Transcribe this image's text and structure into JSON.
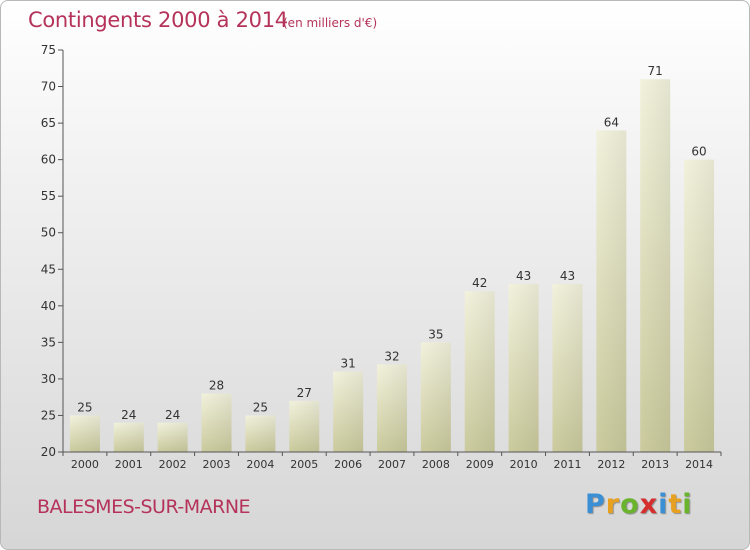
{
  "title": "Contingents 2000 à 2014",
  "subtitle": "(en milliers d'€)",
  "commune": "BALESMES-SUR-MARNE",
  "logo": {
    "letters": [
      "P",
      "r",
      "o",
      "x",
      "i",
      "t",
      "i"
    ],
    "colors": [
      "#3b8fd4",
      "#e8a020",
      "#6ab42d",
      "#d62d2d",
      "#3b8fd4",
      "#e8a020",
      "#6ab42d"
    ]
  },
  "chart_data": {
    "type": "bar",
    "categories": [
      "2000",
      "2001",
      "2002",
      "2003",
      "2004",
      "2005",
      "2006",
      "2007",
      "2008",
      "2009",
      "2010",
      "2011",
      "2012",
      "2013",
      "2014"
    ],
    "values": [
      25,
      24,
      24,
      28,
      25,
      27,
      31,
      32,
      35,
      42,
      43,
      43,
      64,
      71,
      60
    ],
    "title": "Contingents 2000 à 2014",
    "subtitle": "(en milliers d'€)",
    "xlabel": "",
    "ylabel": "",
    "ylim": [
      20,
      75
    ],
    "yticks": [
      20,
      25,
      30,
      35,
      40,
      45,
      50,
      55,
      60,
      65,
      70,
      75
    ],
    "grid": false,
    "bar_color": "#f4f4c8"
  }
}
